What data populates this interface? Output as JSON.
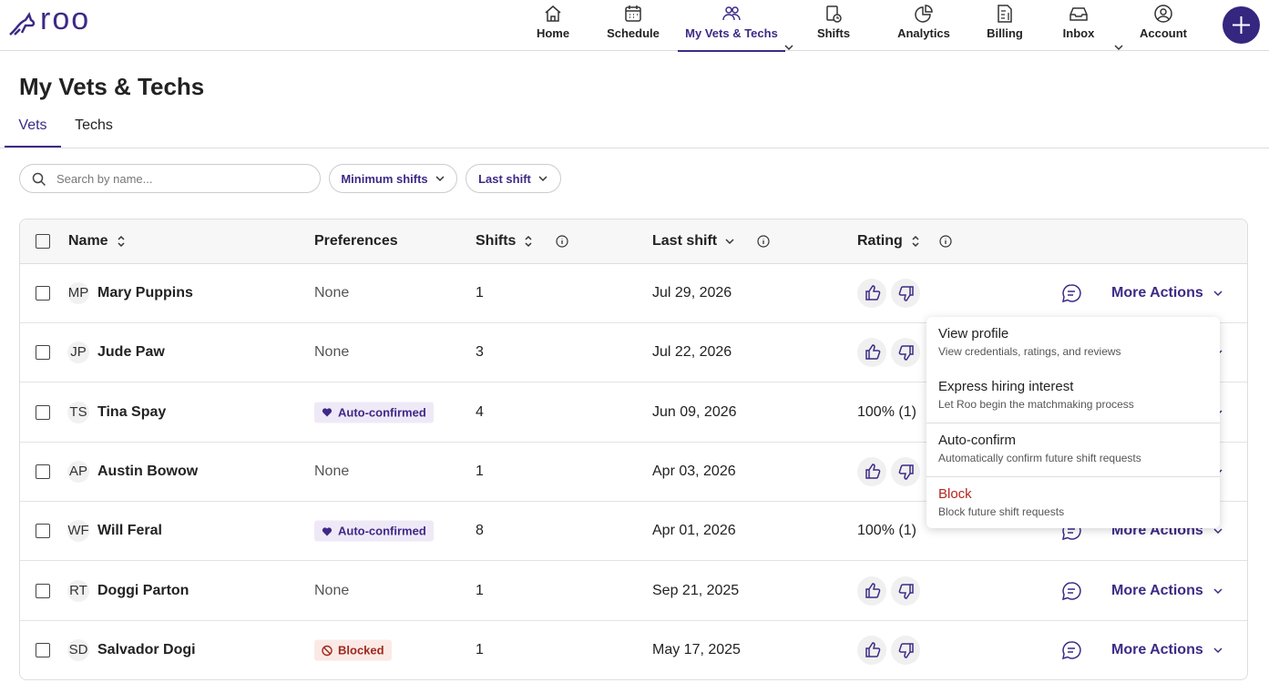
{
  "header": {
    "logo": "roo",
    "nav": [
      {
        "label": "Home"
      },
      {
        "label": "Schedule"
      },
      {
        "label": "My Vets & Techs",
        "active": true
      },
      {
        "label": "Shifts",
        "dropdown": true
      },
      {
        "label": "Analytics"
      },
      {
        "label": "Billing"
      },
      {
        "label": "Inbox"
      },
      {
        "label": "Account",
        "dropdown": true
      }
    ]
  },
  "page": {
    "title": "My Vets & Techs",
    "tabs": [
      {
        "label": "Vets",
        "active": true
      },
      {
        "label": "Techs"
      }
    ],
    "search_placeholder": "Search by name...",
    "filters": [
      "Minimum shifts",
      "Last shift"
    ]
  },
  "table": {
    "columns": [
      "Name",
      "Preferences",
      "Shifts",
      "Last shift",
      "Rating"
    ],
    "more_actions": "More Actions",
    "rows": [
      {
        "initials": "MP",
        "name": "Mary Puppins",
        "preference": "None",
        "shifts": 1,
        "last_shift": "Jul 29, 2026",
        "rating": null
      },
      {
        "initials": "JP",
        "name": "Jude Paw",
        "preference": "None",
        "shifts": 3,
        "last_shift": "Jul 22, 2026",
        "rating": null
      },
      {
        "initials": "TS",
        "name": "Tina Spay",
        "preference": {
          "text": "Auto-confirmed",
          "icon": "heart",
          "color": "#3d2a86",
          "background": "#efe9f7"
        },
        "shifts": 4,
        "last_shift": "Jun 09, 2026",
        "rating": "100% (1)"
      },
      {
        "initials": "AP",
        "name": "Austin Bowow",
        "preference": "None",
        "shifts": 1,
        "last_shift": "Apr 03, 2026",
        "rating": null
      },
      {
        "initials": "WF",
        "name": "Will Feral",
        "preference": {
          "text": "Auto-confirmed",
          "icon": "heart",
          "color": "#3d2a86",
          "background": "#efe9f7"
        },
        "shifts": 8,
        "last_shift": "Apr 01, 2026",
        "rating": "100% (1)"
      },
      {
        "initials": "RT",
        "name": "Doggi Parton",
        "preference": "None",
        "shifts": 1,
        "last_shift": "Sep 21, 2025",
        "rating": null
      },
      {
        "initials": "SD",
        "name": "Salvador Dogi",
        "preference": {
          "text": "Blocked",
          "icon": "blocked",
          "color": "#9e2a1e",
          "background": "#fbe9e6"
        },
        "shifts": 1,
        "last_shift": "May 17, 2025",
        "rating": null
      }
    ]
  },
  "menu": {
    "items": [
      {
        "title": "View profile",
        "description": "View credentials, ratings, and reviews"
      },
      {
        "title": "Express hiring interest",
        "description": "Let Roo begin the matchmaking process"
      },
      {
        "title": "Auto-confirm",
        "description": "Automatically confirm future shift requests"
      },
      {
        "title": "Block",
        "description": "Block future shift requests",
        "danger": true
      }
    ]
  }
}
